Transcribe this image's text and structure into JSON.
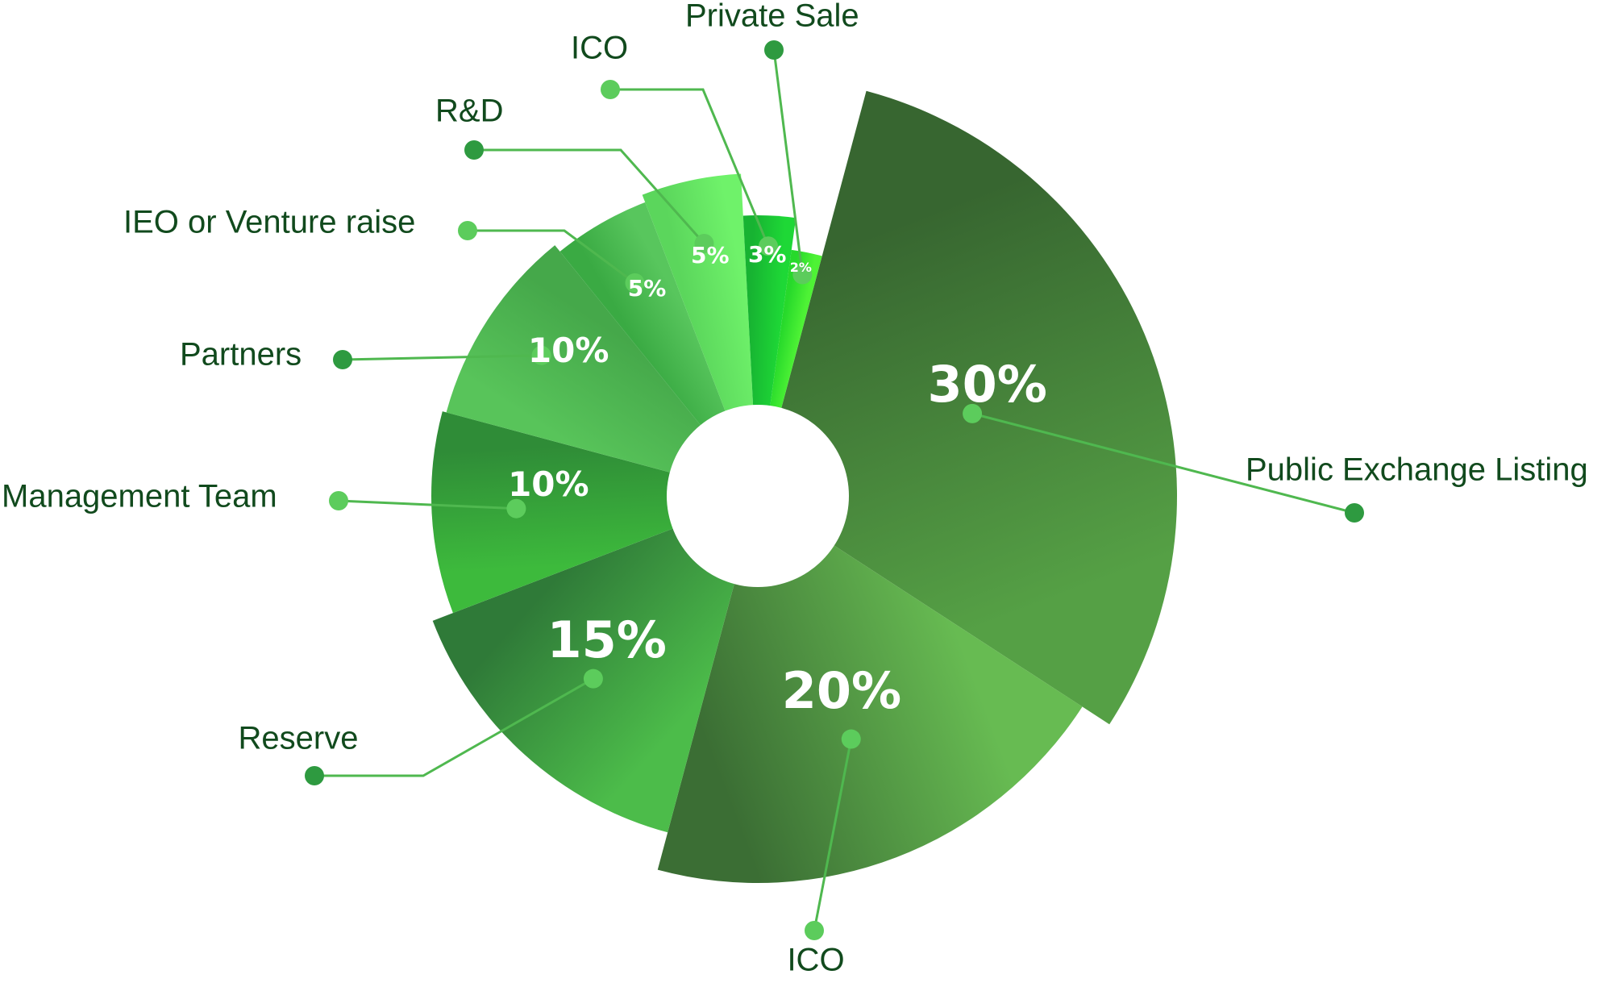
{
  "chart_data": {
    "type": "pie",
    "variant": "donut with variable-length slices",
    "title": "",
    "slices": [
      {
        "label": "Public Exchange Listing",
        "value": 30,
        "value_label": "30%",
        "colors": [
          "#376630",
          "#55a045"
        ]
      },
      {
        "label": "ICO",
        "value": 20,
        "value_label": "20%",
        "colors": [
          "#67bb52",
          "#3b6e34"
        ]
      },
      {
        "label": "Reserve",
        "value": 15,
        "value_label": "15%",
        "colors": [
          "#4cbc4a",
          "#2f7a38"
        ]
      },
      {
        "label": "Management Team",
        "value": 10,
        "value_label": "10%",
        "colors": [
          "#3dba3c",
          "#2f8c37"
        ]
      },
      {
        "label": "Partners",
        "value": 10,
        "value_label": "10%",
        "colors": [
          "#58c45a",
          "#45a84a"
        ]
      },
      {
        "label": "IEO or Venture raise",
        "value": 5,
        "value_label": "5%",
        "colors": [
          "#3aaa43",
          "#58c65d"
        ]
      },
      {
        "label": "R&D",
        "value": 5,
        "value_label": "5%",
        "colors": [
          "#5bd65c",
          "#6ff26a"
        ]
      },
      {
        "label": "ICO",
        "value": 3,
        "value_label": "3%",
        "colors": [
          "#17b332",
          "#1ed836"
        ]
      },
      {
        "label": "Private Sale",
        "value": 2,
        "value_label": "2%",
        "colors": [
          "#27d92b",
          "#4ef235"
        ]
      }
    ],
    "legend": "callout labels around the chart",
    "accent_color": "#5ccc5c",
    "label_color": "#114a1d"
  }
}
